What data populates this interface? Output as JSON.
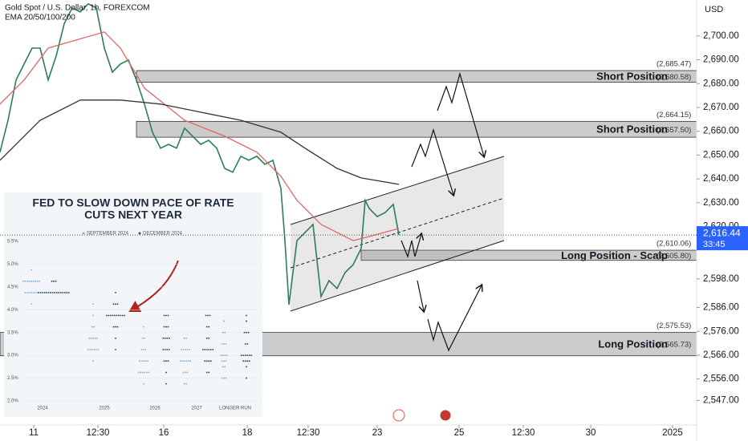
{
  "header": {
    "title": "Gold Spot / U.S. Dollar, 1h, FOREXCOM",
    "indicator": "EMA 20/50/100/200",
    "currency": "USD"
  },
  "chart_data": [
    {
      "type": "line",
      "xlim": [
        0,
        217
      ],
      "ylim": [
        2536.7,
        2715.1
      ],
      "xticks": [
        {
          "value": 10.5,
          "label": "11"
        },
        {
          "value": 30.5,
          "label": "12:30"
        },
        {
          "value": 51,
          "label": "16"
        },
        {
          "value": 77,
          "label": "18"
        },
        {
          "value": 96,
          "label": "12:30"
        },
        {
          "value": 117.5,
          "label": "23"
        },
        {
          "value": 143,
          "label": "25"
        },
        {
          "value": 163,
          "label": "12:30"
        },
        {
          "value": 184,
          "label": "30"
        },
        {
          "value": 209.5,
          "label": "2025"
        }
      ],
      "yticks": [
        {
          "value": 2700,
          "label": "2,700.00"
        },
        {
          "value": 2690,
          "label": "2,690.00"
        },
        {
          "value": 2680,
          "label": "2,680.00"
        },
        {
          "value": 2670,
          "label": "2,670.00"
        },
        {
          "value": 2660,
          "label": "2,660.00"
        },
        {
          "value": 2650,
          "label": "2,650.00"
        },
        {
          "value": 2640,
          "label": "2,640.00"
        },
        {
          "value": 2630,
          "label": "2,630.00"
        },
        {
          "value": 2620,
          "label": "2,620.00"
        },
        {
          "value": 2598,
          "label": "2,598.00"
        },
        {
          "value": 2586,
          "label": "2,586.00"
        },
        {
          "value": 2576,
          "label": "2,576.00"
        },
        {
          "value": 2566,
          "label": "2,566.00"
        },
        {
          "value": 2556,
          "label": "2,556.00"
        },
        {
          "value": 2547,
          "label": "2,547.00"
        }
      ],
      "series": [
        {
          "color": "#2e7d57",
          "x": [
            0,
            2.5,
            5,
            7.5,
            10,
            12.5,
            15,
            17.5,
            20,
            22.5,
            25,
            27.5,
            30,
            32.5,
            35,
            37.5,
            40,
            42.5,
            45,
            47.5,
            50,
            52.5,
            55,
            57.5,
            60,
            62.5,
            65,
            67.5,
            70,
            72.5,
            75,
            77.5,
            80,
            82.5,
            85,
            87.5,
            88.75,
            90,
            92.5,
            95,
            97.5,
            100,
            102.5,
            105,
            107.5,
            110,
            112.5,
            113.75,
            115,
            117.5,
            120,
            122.5,
            124.25
          ],
          "values": [
            2651.2,
            2664.6,
            2681.5,
            2688.2,
            2694.9,
            2694.9,
            2681.5,
            2691.6,
            2705.1,
            2711.8,
            2710.1,
            2713.5,
            2711.8,
            2694.9,
            2684.8,
            2688.2,
            2689.9,
            2681.5,
            2671.4,
            2659.6,
            2652.9,
            2654.5,
            2652.9,
            2661.3,
            2657.9,
            2654.5,
            2656.2,
            2652.9,
            2644.4,
            2642.8,
            2649.5,
            2647.8,
            2649.5,
            2646.1,
            2647.8,
            2636.0,
            2614.1,
            2587.2,
            2614.1,
            2617.5,
            2620.9,
            2590.6,
            2597.3,
            2594.0,
            2600.7,
            2604.0,
            2610.8,
            2631.0,
            2627.6,
            2624.2,
            2625.9,
            2629.3,
            2616.4
          ]
        },
        {
          "color": "#e06666",
          "x": [
            0,
            7.5,
            15,
            32.5,
            37.5,
            45,
            57.5,
            70,
            80,
            87.5,
            92.5,
            100,
            110,
            115,
            124.25
          ],
          "values": [
            2671.4,
            2681.5,
            2694.9,
            2701.7,
            2694.9,
            2678.1,
            2664.6,
            2657.9,
            2651.2,
            2641.1,
            2631.0,
            2620.9,
            2614.1,
            2615.8,
            2619.2
          ]
        },
        {
          "color": "#333333",
          "x": [
            0,
            12.5,
            25,
            37.5,
            50,
            62.5,
            75,
            87.5,
            95,
            105,
            112.5,
            124.25
          ],
          "values": [
            2647.8,
            2664.6,
            2673.1,
            2673.1,
            2671.4,
            2668.0,
            2664.6,
            2659.6,
            2652.9,
            2644.4,
            2640.4,
            2637.7
          ]
        }
      ],
      "zones": [
        {
          "label": "Short Position",
          "from": 42.5,
          "high": 2685.47,
          "low": 2680.58,
          "high_label": "(2,685.47)",
          "low_label": "(2,680.58)"
        },
        {
          "label": "Short Position",
          "from": 42.5,
          "high": 2664.15,
          "low": 2657.5,
          "high_label": "(2,664.15)",
          "low_label": "(2,657.50)"
        },
        {
          "label": "Long Position - Scalp",
          "from": 112.5,
          "high": 2610.06,
          "low": 2605.8,
          "high_label": "(2,610.06)",
          "low_label": "(2,605.80)"
        },
        {
          "label": "Long Position",
          "from": 0,
          "high": 2575.53,
          "low": 2565.73,
          "high_label": "(2,575.53)",
          "low_label": "(2,565.73)"
        }
      ],
      "current": 2616.44,
      "current_label": "2,616.44",
      "countdown": "33:45"
    },
    {
      "type": "dot",
      "title_lines": [
        "FED TO SLOW DOWN PACE OF RATE",
        "CUTS NEXT YEAR"
      ],
      "categories": [
        "2024",
        "2025",
        "2026",
        "2027",
        "LONGER RUN"
      ],
      "ylim": [
        1.9,
        5.6
      ],
      "yticks": [
        {
          "value": 5.5,
          "label": "5.5%"
        },
        {
          "value": 5.0,
          "label": "5.0%"
        },
        {
          "value": 4.5,
          "label": "4.5%"
        },
        {
          "value": 4.0,
          "label": "4.0%"
        },
        {
          "value": 3.5,
          "label": "3.5%"
        },
        {
          "value": 3.0,
          "label": "3.0%"
        },
        {
          "value": 2.5,
          "label": "2.5%"
        },
        {
          "value": 2.0,
          "label": "2.0%"
        }
      ],
      "series": [
        {
          "name": "SEPTEMBER 2024",
          "color": "#8db3d6",
          "dots": [
            [
              0,
              4.875,
              1
            ],
            [
              0,
              4.625,
              9
            ],
            [
              0,
              4.375,
              7
            ],
            [
              0,
              4.125,
              1
            ],
            [
              1,
              4.125,
              1
            ],
            [
              1,
              3.875,
              1
            ],
            [
              1,
              3.625,
              2
            ],
            [
              1,
              3.375,
              5
            ],
            [
              1,
              3.125,
              6
            ],
            [
              1,
              2.875,
              1
            ],
            [
              2,
              3.625,
              1
            ],
            [
              2,
              3.375,
              2
            ],
            [
              2,
              3.125,
              3
            ],
            [
              2,
              2.875,
              5
            ],
            [
              2,
              2.625,
              6
            ],
            [
              2,
              2.375,
              1
            ],
            [
              3,
              3.375,
              2
            ],
            [
              3,
              3.125,
              5
            ],
            [
              3,
              2.875,
              6
            ],
            [
              3,
              2.625,
              3
            ],
            [
              3,
              2.375,
              2
            ],
            [
              4,
              3.75,
              1
            ],
            [
              4,
              3.5,
              2
            ],
            [
              4,
              3.25,
              3
            ],
            [
              4,
              3.0,
              4
            ],
            [
              4,
              2.875,
              3
            ],
            [
              4,
              2.75,
              2
            ],
            [
              4,
              2.5,
              3
            ]
          ]
        },
        {
          "name": "DECEMBER 2024",
          "color": "#2f4f6f",
          "dots": [
            [
              0,
              4.625,
              3
            ],
            [
              0,
              4.375,
              16
            ],
            [
              1,
              4.375,
              1
            ],
            [
              1,
              4.125,
              3
            ],
            [
              1,
              3.875,
              10
            ],
            [
              1,
              3.625,
              3
            ],
            [
              1,
              3.375,
              1
            ],
            [
              1,
              3.125,
              1
            ],
            [
              2,
              3.875,
              3
            ],
            [
              2,
              3.625,
              3
            ],
            [
              2,
              3.375,
              4
            ],
            [
              2,
              3.125,
              4
            ],
            [
              2,
              2.875,
              3
            ],
            [
              2,
              2.625,
              1
            ],
            [
              2,
              2.375,
              1
            ],
            [
              3,
              3.875,
              3
            ],
            [
              3,
              3.625,
              2
            ],
            [
              3,
              3.375,
              2
            ],
            [
              3,
              3.125,
              6
            ],
            [
              3,
              2.875,
              4
            ],
            [
              3,
              2.625,
              2
            ],
            [
              4,
              3.875,
              1
            ],
            [
              4,
              3.75,
              1
            ],
            [
              4,
              3.5,
              3
            ],
            [
              4,
              3.25,
              2
            ],
            [
              4,
              3.0,
              6
            ],
            [
              4,
              2.875,
              4
            ],
            [
              4,
              2.75,
              1
            ],
            [
              4,
              2.5,
              1
            ]
          ]
        }
      ]
    }
  ]
}
